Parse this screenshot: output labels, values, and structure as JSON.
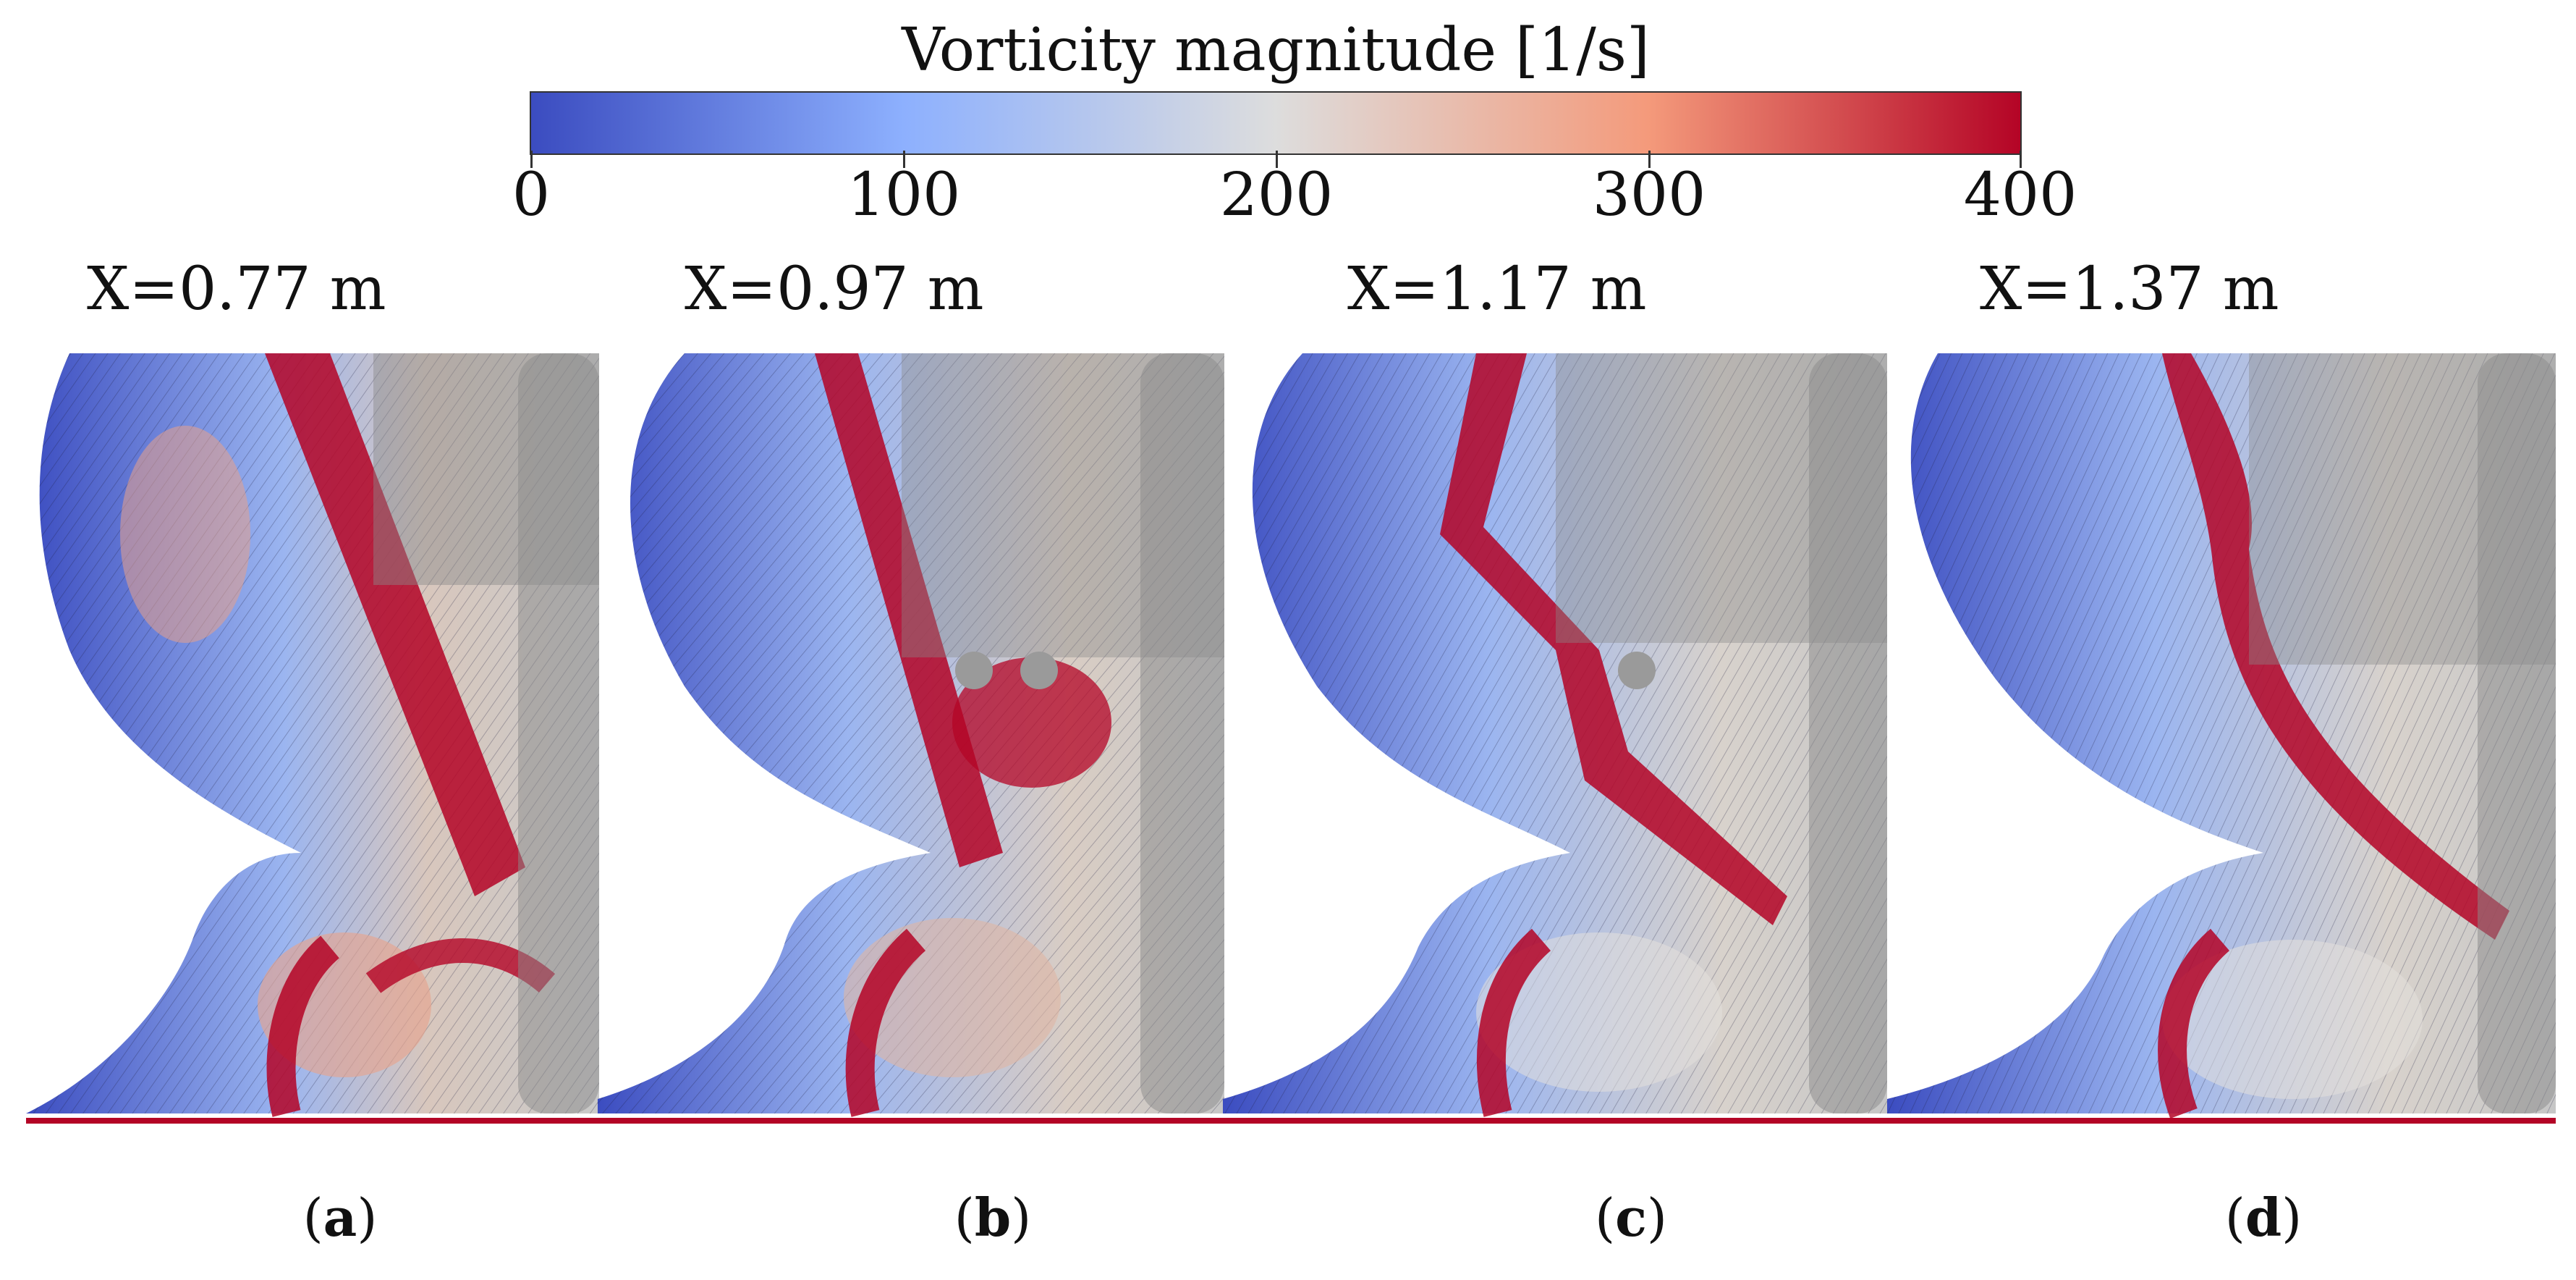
{
  "colorbar": {
    "title": "Vorticity magnitude [1/s]",
    "ticks": [
      "0",
      "100",
      "200",
      "300",
      "400"
    ],
    "colors": [
      "#3b4cc0",
      "#8db0fe",
      "#dddddd",
      "#f49a7b",
      "#b40426"
    ]
  },
  "panels": [
    {
      "label": "X=0.77 m",
      "letter": "a"
    },
    {
      "label": "X=0.97 m",
      "letter": "b"
    },
    {
      "label": "X=1.17 m",
      "letter": "c"
    },
    {
      "label": "X=1.37 m",
      "letter": "d"
    }
  ],
  "caption_brackets": {
    "open": "(",
    "close": ")"
  },
  "colors": {
    "low": "#3b4cc0",
    "mid": "#dddddd",
    "high": "#b40426",
    "geometry_overlay": "#8a8a8a"
  }
}
